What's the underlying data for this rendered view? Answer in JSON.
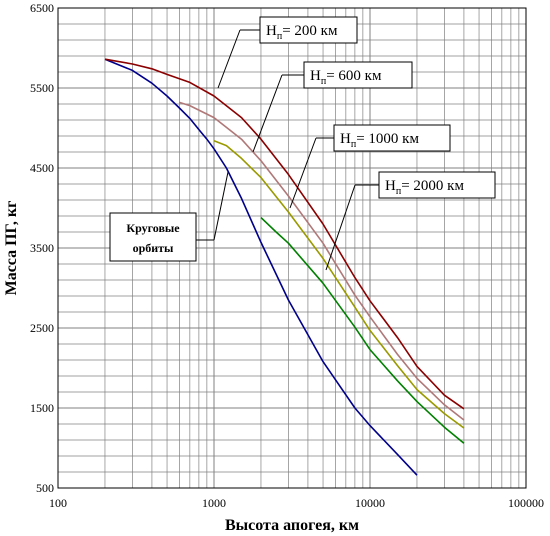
{
  "chart_data": {
    "type": "line",
    "title": "",
    "xlabel": "Высота апогея, км",
    "ylabel": "Масса ПГ, кг",
    "xscale": "log",
    "xlim": [
      100,
      100000
    ],
    "ylim": [
      500,
      6500
    ],
    "x_ticks": [
      "100",
      "1000",
      "10000",
      "100000"
    ],
    "y_ticks": [
      "500",
      "1500",
      "2500",
      "3500",
      "4500",
      "5500",
      "6500"
    ],
    "grid": true,
    "series": [
      {
        "name": "Круговые орбиты",
        "color": "#00008b",
        "points": [
          [
            200,
            5860
          ],
          [
            300,
            5720
          ],
          [
            400,
            5560
          ],
          [
            500,
            5400
          ],
          [
            600,
            5250
          ],
          [
            700,
            5120
          ],
          [
            800,
            4980
          ],
          [
            900,
            4860
          ],
          [
            1000,
            4740
          ],
          [
            1200,
            4500
          ],
          [
            1500,
            4120
          ],
          [
            2000,
            3570
          ],
          [
            3000,
            2850
          ],
          [
            5000,
            2080
          ],
          [
            8000,
            1500
          ],
          [
            10000,
            1280
          ],
          [
            15000,
            920
          ],
          [
            20000,
            660
          ]
        ]
      },
      {
        "name": "Hп= 200 км",
        "color": "#8b0000",
        "points": [
          [
            200,
            5860
          ],
          [
            300,
            5800
          ],
          [
            400,
            5740
          ],
          [
            500,
            5670
          ],
          [
            700,
            5570
          ],
          [
            1000,
            5400
          ],
          [
            1500,
            5130
          ],
          [
            2000,
            4860
          ],
          [
            3000,
            4420
          ],
          [
            5000,
            3800
          ],
          [
            8000,
            3130
          ],
          [
            10000,
            2840
          ],
          [
            15000,
            2380
          ],
          [
            20000,
            2020
          ],
          [
            30000,
            1660
          ],
          [
            40000,
            1490
          ]
        ]
      },
      {
        "name": "Hп= 600 км",
        "color": "#b07878",
        "points": [
          [
            600,
            5320
          ],
          [
            700,
            5280
          ],
          [
            1000,
            5130
          ],
          [
            1500,
            4860
          ],
          [
            2000,
            4590
          ],
          [
            3000,
            4150
          ],
          [
            5000,
            3560
          ],
          [
            8000,
            2910
          ],
          [
            10000,
            2640
          ],
          [
            15000,
            2170
          ],
          [
            20000,
            1870
          ],
          [
            30000,
            1540
          ],
          [
            40000,
            1350
          ]
        ]
      },
      {
        "name": "Hп= 1000 км",
        "color": "#9a9a00",
        "points": [
          [
            1000,
            4840
          ],
          [
            1200,
            4780
          ],
          [
            1500,
            4620
          ],
          [
            2000,
            4380
          ],
          [
            3000,
            3950
          ],
          [
            5000,
            3370
          ],
          [
            8000,
            2760
          ],
          [
            10000,
            2470
          ],
          [
            15000,
            2030
          ],
          [
            20000,
            1730
          ],
          [
            30000,
            1430
          ],
          [
            40000,
            1250
          ]
        ]
      },
      {
        "name": "Hп= 2000 км",
        "color": "#008000",
        "points": [
          [
            2000,
            3880
          ],
          [
            2500,
            3700
          ],
          [
            3000,
            3560
          ],
          [
            5000,
            3060
          ],
          [
            8000,
            2510
          ],
          [
            10000,
            2230
          ],
          [
            15000,
            1840
          ],
          [
            20000,
            1580
          ],
          [
            30000,
            1260
          ],
          [
            40000,
            1060
          ]
        ]
      }
    ],
    "annotations": [
      {
        "prefix": "H",
        "sub": "п",
        "rest": "= 200 км"
      },
      {
        "prefix": "H",
        "sub": "п",
        "rest": "= 600 км"
      },
      {
        "prefix": "H",
        "sub": "п",
        "rest": "= 1000 км"
      },
      {
        "prefix": "H",
        "sub": "п",
        "rest": "= 2000 км"
      },
      {
        "line1": "Круговые",
        "line2": "орбиты"
      }
    ]
  }
}
